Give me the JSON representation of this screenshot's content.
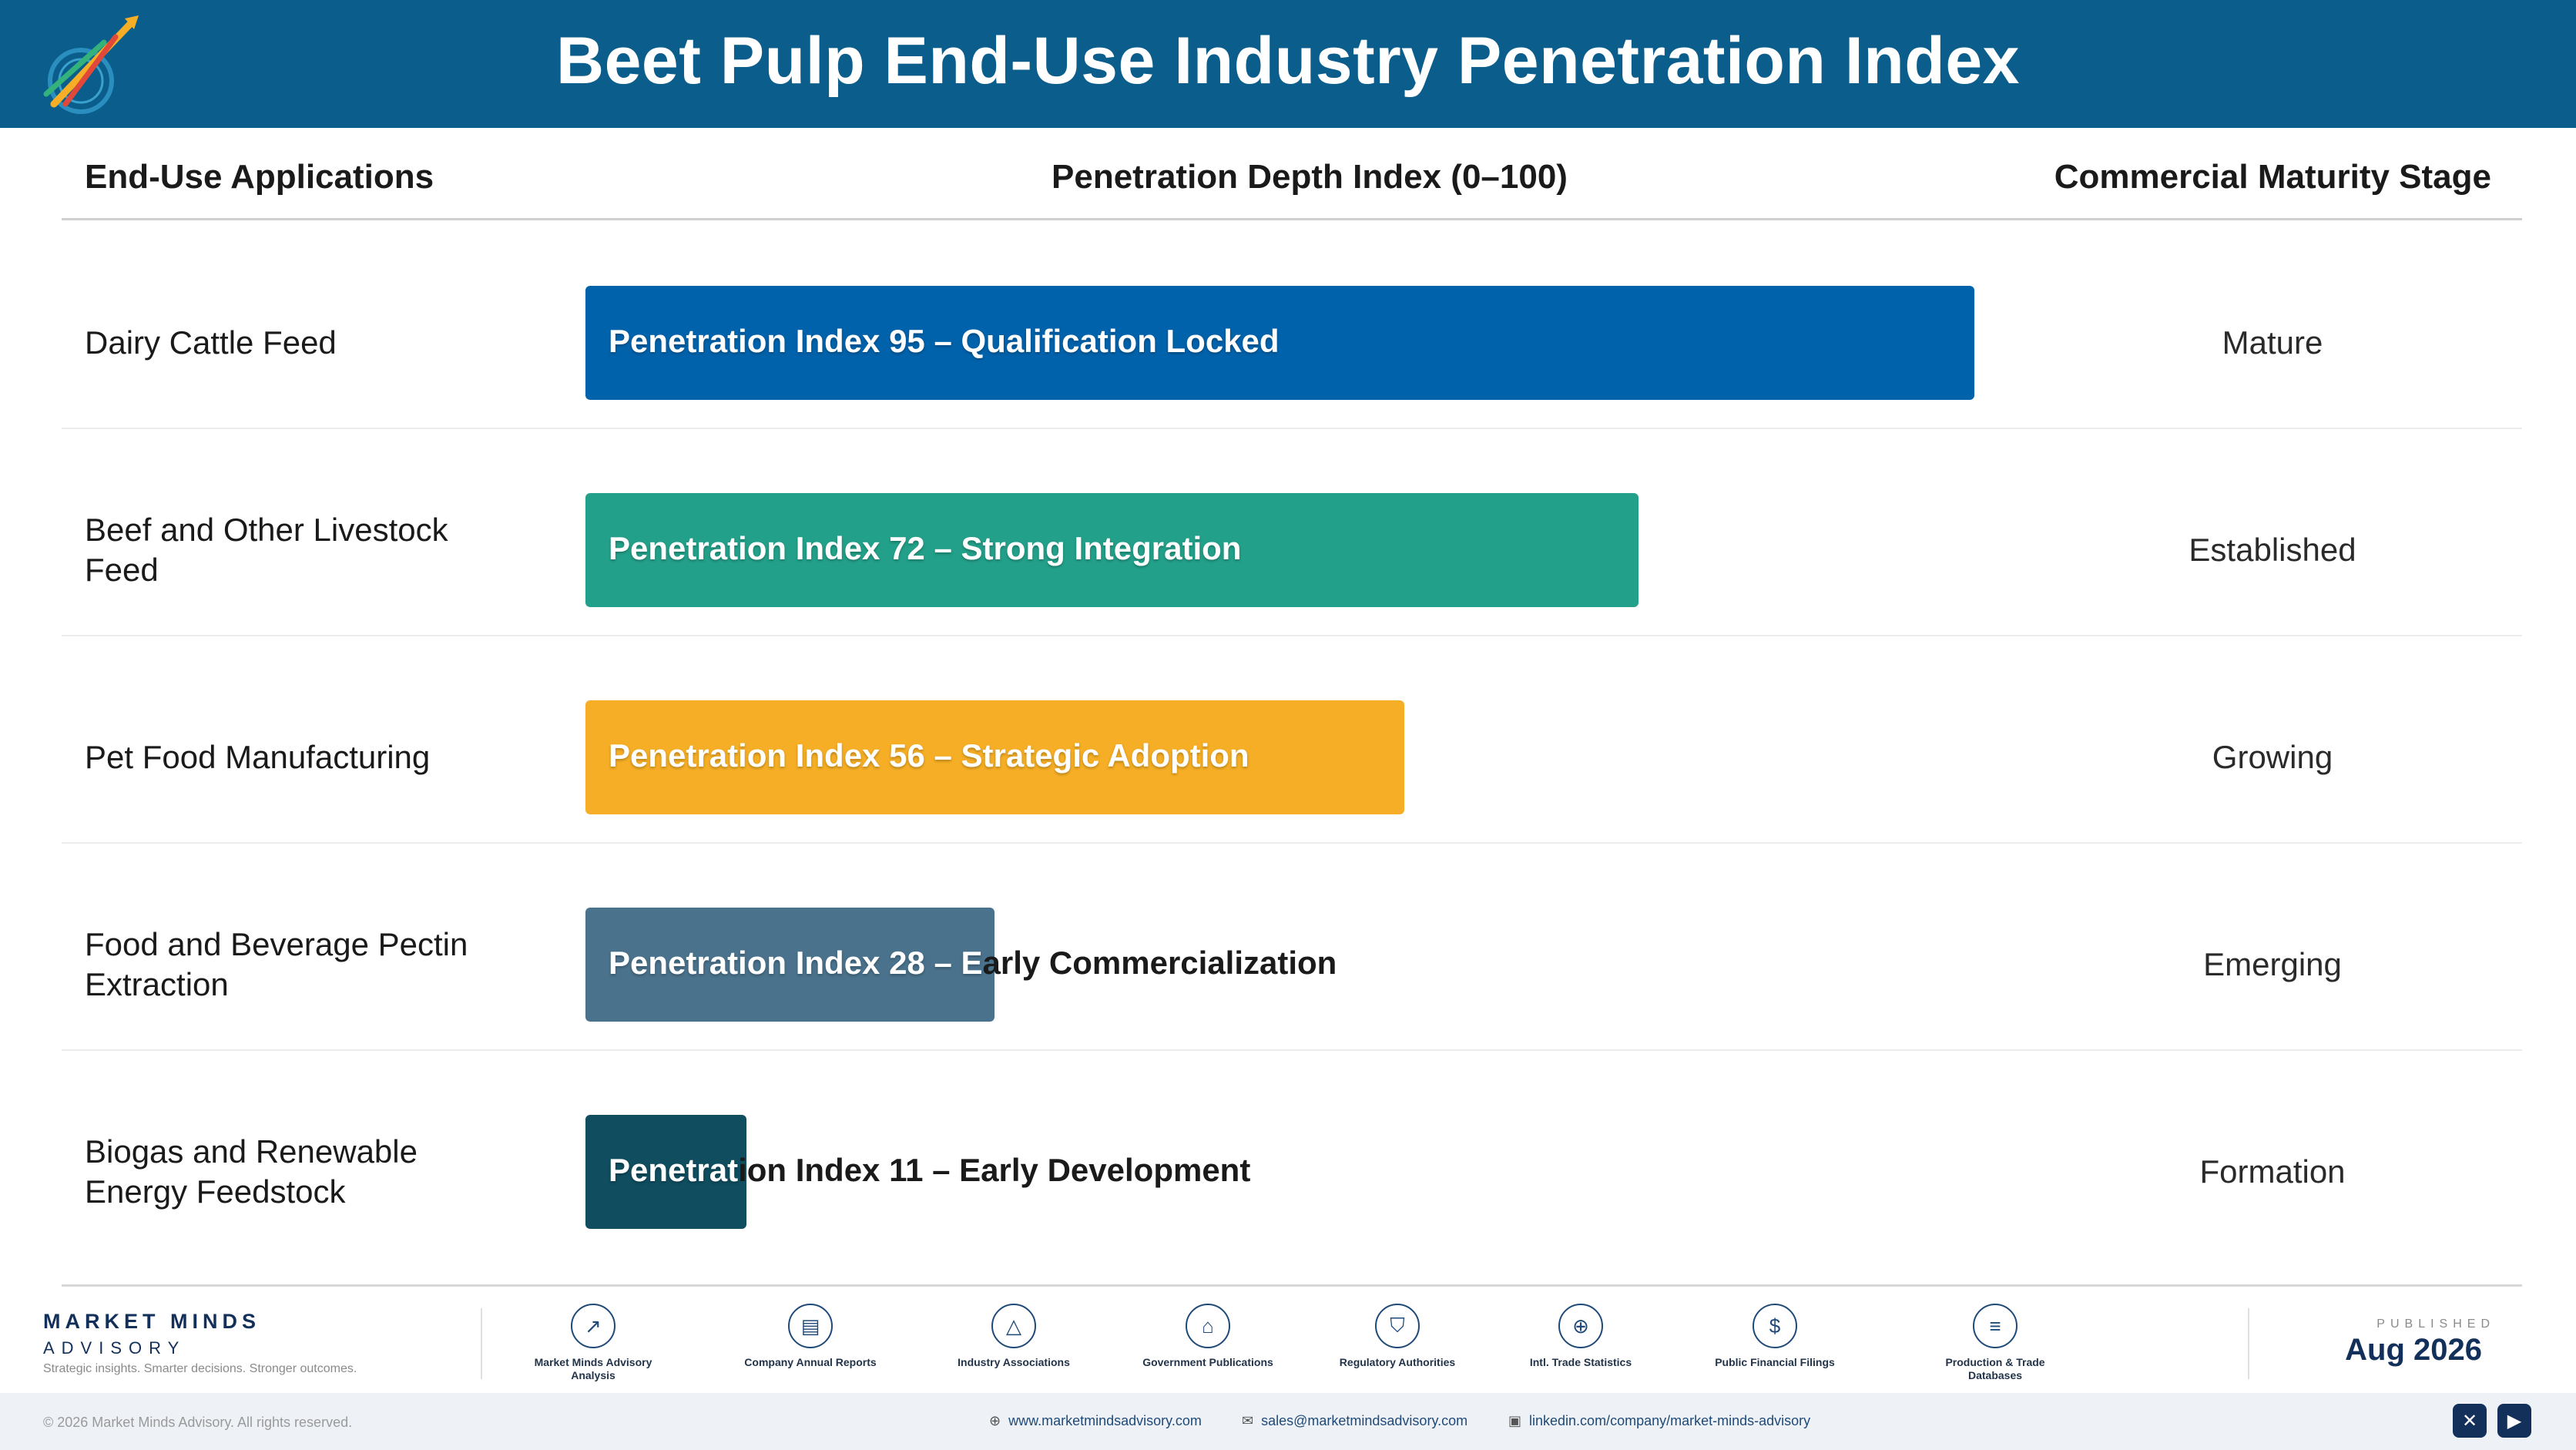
{
  "title": "Beet Pulp End-Use Industry Penetration Index",
  "logo_text": "Market Minds Advisory",
  "columns": {
    "apps": "End-Use Applications",
    "index": "Penetration Depth Index (0–100)",
    "stage": "Commercial Maturity Stage"
  },
  "chart_data": {
    "type": "bar",
    "orientation": "horizontal",
    "title": "Beet Pulp End-Use Industry Penetration Index",
    "xlabel": "Penetration Depth Index (0–100)",
    "xlim": [
      0,
      100
    ],
    "categories": [
      "Dairy Cattle Feed",
      "Beef and Other Livestock Feed",
      "Pet Food Manufacturing",
      "Food and Beverage Pectin Extraction",
      "Biogas and Renewable Energy Feedstock"
    ],
    "values": [
      95,
      72,
      56,
      28,
      11
    ],
    "bar_labels": [
      "Penetration Index 95 – Qualification Locked",
      "Penetration Index 72 – Strong Integration",
      "Penetration Index 56 – Strategic Adoption",
      "Penetration Index 28 – Early Commercialization",
      "Penetration Index 11 – Early Development"
    ],
    "stages": [
      "Mature",
      "Established",
      "Growing",
      "Emerging",
      "Formation"
    ],
    "colors": [
      "#0062ab",
      "#23a089",
      "#f5ae25",
      "#4a728c",
      "#0f4d5f"
    ]
  },
  "footer": {
    "brand": "MARKET MINDS",
    "brand_sub": "ADVISORY",
    "tagline": "Strategic insights. Smarter decisions. Stronger outcomes.",
    "sources": [
      {
        "label": "Market Minds Advisory Analysis",
        "icon": "chart-line-icon"
      },
      {
        "label": "Company Annual Reports",
        "icon": "document-icon"
      },
      {
        "label": "Industry Associations",
        "icon": "network-icon"
      },
      {
        "label": "Government Publications",
        "icon": "government-icon"
      },
      {
        "label": "Regulatory Authorities",
        "icon": "shield-icon"
      },
      {
        "label": "Intl. Trade Statistics",
        "icon": "globe-icon"
      },
      {
        "label": "Public Financial Filings",
        "icon": "coin-icon"
      },
      {
        "label": "Production & Trade Databases",
        "icon": "database-icon"
      }
    ],
    "published_label": "PUBLISHED",
    "published_date": "Aug 2026",
    "copyright": "© 2026 Market Minds Advisory. All rights reserved.",
    "website": "www.marketmindsadvisory.com",
    "email": "sales@marketmindsadvisory.com",
    "linkedin": "linkedin.com/company/market-minds-advisory"
  }
}
